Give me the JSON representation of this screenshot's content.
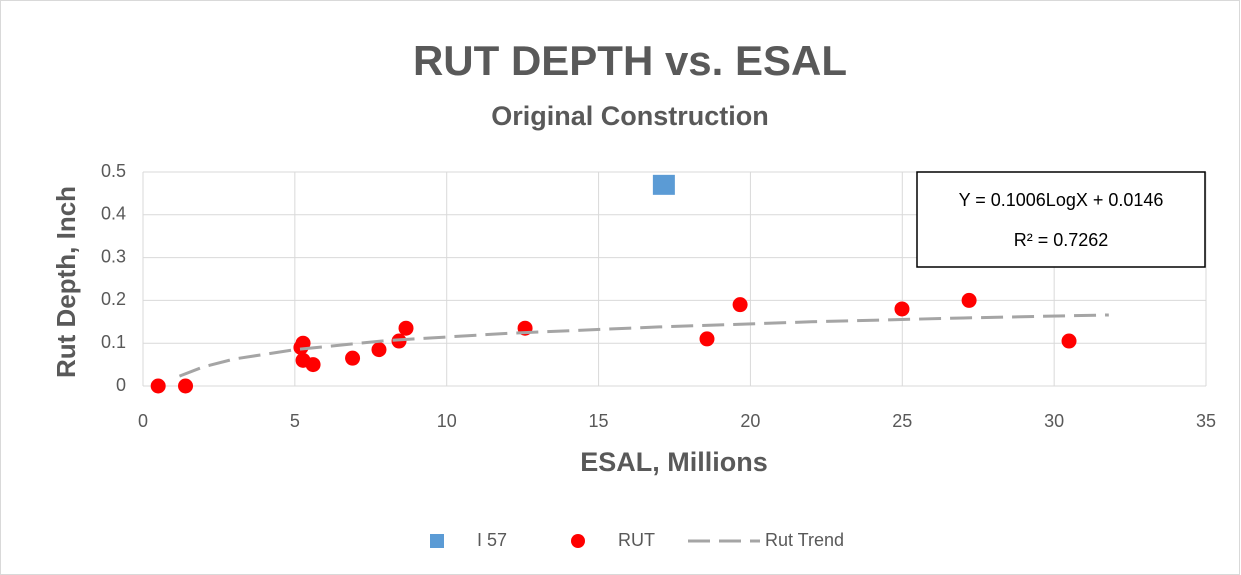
{
  "chart_data": {
    "type": "scatter",
    "title": "RUT DEPTH vs. ESAL",
    "subtitle": "Original Construction",
    "xlabel": "ESAL, Millions",
    "ylabel": "Rut Depth, Inch",
    "xlim": [
      0,
      35
    ],
    "xticks": [
      0,
      5,
      10,
      15,
      20,
      25,
      30,
      35
    ],
    "ylim": [
      0,
      0.5
    ],
    "yticks": [
      0,
      0.1,
      0.2,
      0.3,
      0.4,
      0.5
    ],
    "grid": true,
    "legend": "bottom",
    "annotations": [
      "Y = 0.1006LogX + 0.0146",
      "R² = 0.7262"
    ],
    "series": [
      {
        "name": "I 57",
        "color": "#5b9bd5",
        "marker": "square",
        "x": [
          17.15
        ],
        "values": [
          0.47
        ]
      },
      {
        "name": "RUT",
        "color": "#ff0000",
        "marker": "circle",
        "x": [
          0.5,
          1.4,
          5.27,
          5.2,
          5.27,
          5.6,
          6.9,
          7.77,
          8.43,
          8.66,
          12.58,
          18.57,
          19.66,
          24.99,
          27.2,
          30.49
        ],
        "values": [
          0,
          0,
          0.1,
          0.09,
          0.06,
          0.05,
          0.065,
          0.085,
          0.105,
          0.135,
          0.135,
          0.11,
          0.19,
          0.18,
          0.2,
          0.105
        ]
      },
      {
        "name": "Rut Trend",
        "color": "#a5a5a5",
        "marker": "dashed-line",
        "x": [
          1.2,
          2,
          3,
          5,
          8,
          12,
          17,
          22,
          27,
          31.8
        ],
        "values": [
          0.023,
          0.045,
          0.063,
          0.085,
          0.106,
          0.123,
          0.138,
          0.15,
          0.159,
          0.166
        ]
      }
    ]
  }
}
